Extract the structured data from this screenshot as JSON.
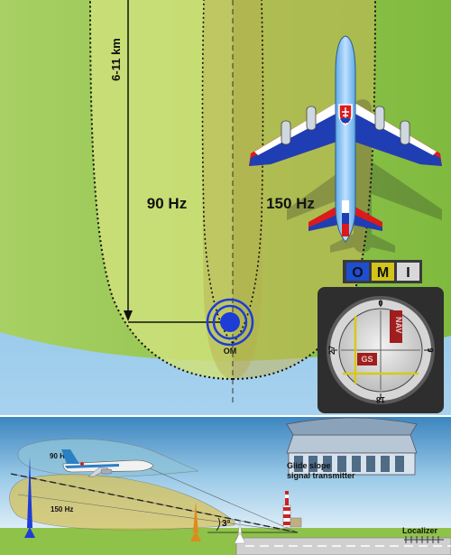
{
  "top_view": {
    "distance_label": "6-11 km",
    "left_lobe_label": "90 Hz",
    "right_lobe_label": "150 Hz",
    "outer_marker_label": "OM"
  },
  "marker_indicator": {
    "lights": [
      {
        "letter": "O",
        "color": "#1e4fd1"
      },
      {
        "letter": "M",
        "color": "#d2c41a"
      },
      {
        "letter": "I",
        "color": "#d8d8d8"
      }
    ]
  },
  "ils_instrument": {
    "heading_top": "0",
    "heading_right": "9",
    "heading_bottom": "18",
    "heading_left": "27",
    "nav_flag": "NAV",
    "gs_flag": "GS"
  },
  "side_view": {
    "upper_lobe_label": "90 Hz",
    "lower_lobe_label": "150 Hz",
    "glide_angle_label": "3°",
    "glide_slope_label_line1": "Glide slope",
    "glide_slope_label_line2": "signal transmitter",
    "localizer_label": "Localizer"
  },
  "colors": {
    "grass_light": "#b4d66a",
    "grass_dark": "#8ec24a",
    "lobe_90hz": "#cfe07a",
    "lobe_150hz": "#c8b858",
    "sea": "#78b8e2",
    "sky_top": "#3c85c0",
    "sky_bottom": "#ffffff",
    "marker_blue": "#1e3cd6"
  }
}
